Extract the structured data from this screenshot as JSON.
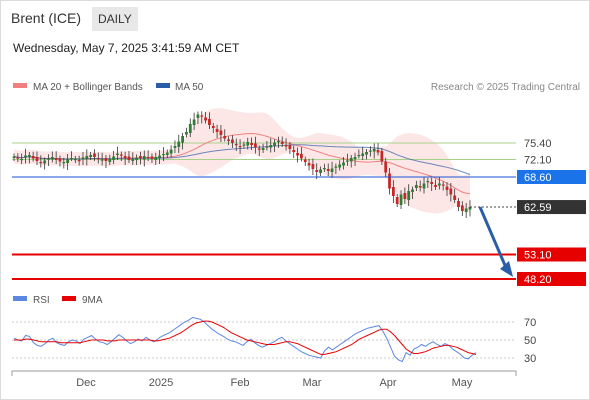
{
  "header": {
    "instrument": "Brent (ICE)",
    "timeframe": "DAILY",
    "timestamp": "Wednesday, May 7, 2025 3:41:59 AM CET"
  },
  "legend": {
    "ma20": "MA 20 + Bollinger Bands",
    "ma50": "MA 50",
    "credit": "Research © 2025 Trading Central",
    "rsi": "RSI",
    "rsi_ma": "9MA"
  },
  "colors": {
    "ma20": "#f08080",
    "ma50": "#2a5da8",
    "band_fill": "#fde0e0",
    "bull": "#2e7d32",
    "bear": "#c62828",
    "current_line": "#1a56d6",
    "current_label": "#1a73e8",
    "price_label": "#333333",
    "support": "#e60000",
    "resistance": "#a8d08d",
    "arrow": "#2a5da8",
    "rsi": "#5b87e0"
  },
  "chart_data": [
    {
      "type": "candlestick",
      "x_axis": [
        "Dec",
        "2025",
        "Feb",
        "Mar",
        "Apr",
        "May"
      ],
      "last_price": "62.59",
      "current_level": "68.60",
      "resistance_levels": [
        "75.40",
        "72.10"
      ],
      "support_levels": [
        "53.10",
        "48.20"
      ],
      "ohlc_close": [
        72.7,
        72.4,
        72.2,
        72.9,
        73.0,
        72.3,
        71.8,
        71.5,
        71.9,
        72.3,
        72.6,
        72.0,
        71.7,
        71.6,
        72.1,
        72.4,
        72.2,
        71.9,
        72.5,
        72.8,
        73.0,
        72.6,
        72.3,
        72.1,
        71.8,
        72.2,
        72.7,
        73.3,
        73.0,
        72.4,
        72.0,
        72.2,
        72.5,
        72.3,
        72.8,
        72.4,
        72.2,
        72.6,
        72.9,
        73.2,
        73.5,
        74.1,
        74.8,
        75.7,
        76.8,
        77.6,
        79.2,
        80.1,
        81.1,
        80.7,
        79.9,
        79.0,
        78.4,
        77.6,
        77.0,
        76.3,
        75.8,
        75.4,
        75.0,
        74.6,
        75.1,
        75.6,
        75.0,
        74.5,
        74.2,
        74.4,
        74.7,
        75.0,
        75.5,
        75.8,
        75.2,
        74.7,
        74.2,
        73.6,
        72.9,
        72.3,
        71.6,
        70.9,
        70.2,
        69.6,
        70.1,
        70.4,
        69.8,
        70.3,
        70.7,
        71.1,
        71.5,
        71.9,
        72.4,
        72.6,
        73.0,
        73.3,
        73.6,
        73.9,
        74.2,
        73.5,
        71.8,
        69.5,
        66.3,
        64.8,
        63.2,
        65.1,
        64.2,
        65.8,
        66.1,
        67.0,
        66.5,
        67.3,
        67.8,
        67.2,
        66.6,
        67.3,
        66.9,
        66.0,
        65.1,
        64.0,
        62.6,
        61.8,
        62.3,
        62.59
      ],
      "x": [
        "2024-11-15",
        "2025-05-07"
      ],
      "ylim": [
        46,
        84
      ]
    },
    {
      "type": "line",
      "series": [
        {
          "name": "RSI",
          "values": [
            52,
            50,
            49,
            55,
            54,
            47,
            44,
            43,
            46,
            50,
            52,
            47,
            45,
            44,
            48,
            50,
            49,
            46,
            51,
            53,
            55,
            51,
            48,
            47,
            45,
            48,
            52,
            56,
            53,
            49,
            46,
            48,
            51,
            49,
            53,
            50,
            48,
            51,
            54,
            56,
            58,
            61,
            64,
            67,
            70,
            72,
            75,
            74,
            73,
            70,
            66,
            62,
            59,
            56,
            54,
            51,
            49,
            48,
            46,
            44,
            48,
            51,
            47,
            44,
            42,
            44,
            46,
            48,
            51,
            53,
            49,
            46,
            43,
            40,
            37,
            35,
            33,
            32,
            31,
            30,
            38,
            42,
            39,
            42,
            45,
            48,
            51,
            54,
            57,
            59,
            61,
            63,
            64,
            65,
            66,
            60,
            52,
            42,
            32,
            28,
            26,
            36,
            33,
            40,
            42,
            45,
            43,
            46,
            48,
            45,
            43,
            46,
            44,
            40,
            37,
            34,
            30,
            29,
            33,
            36
          ]
        },
        {
          "name": "9MA",
          "values": [
            50,
            50,
            50,
            51,
            51,
            50,
            49,
            48,
            48,
            48,
            48,
            48,
            47,
            47,
            47,
            47,
            47,
            47,
            48,
            49,
            50,
            50,
            50,
            50,
            49,
            49,
            49,
            50,
            50,
            50,
            50,
            50,
            50,
            50,
            50,
            50,
            49,
            49,
            50,
            51,
            52,
            54,
            56,
            58,
            61,
            64,
            67,
            69,
            70,
            71,
            71,
            70,
            68,
            66,
            64,
            61,
            58,
            56,
            54,
            52,
            50,
            49,
            48,
            47,
            46,
            45,
            45,
            45,
            46,
            47,
            48,
            48,
            47,
            46,
            44,
            42,
            40,
            38,
            36,
            34,
            34,
            35,
            36,
            37,
            39,
            41,
            43,
            45,
            48,
            51,
            53,
            55,
            57,
            59,
            61,
            62,
            62,
            59,
            55,
            50,
            45,
            40,
            37,
            35,
            35,
            36,
            37,
            39,
            41,
            42,
            43,
            44,
            44,
            43,
            42,
            40,
            38,
            36,
            35,
            34
          ]
        }
      ],
      "y_ticks": [
        "70",
        "50",
        "30"
      ],
      "ylim": [
        20,
        80
      ]
    }
  ]
}
